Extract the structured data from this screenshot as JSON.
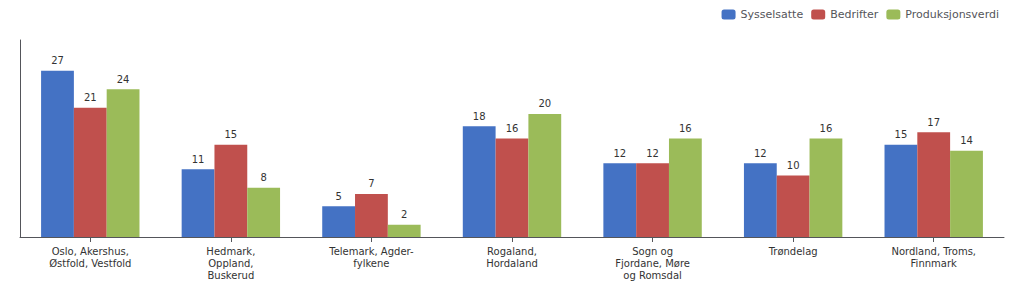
{
  "chart_data": {
    "type": "bar",
    "categories": [
      "Oslo, Akershus,\nØstfold, Vestfold",
      "Hedmark,\nOppland,\nBuskerud",
      "Telemark, Agder-\nfylkene",
      "Rogaland,\nHordaland",
      "Sogn og\nFjordane, Møre\nog Romsdal",
      "Trøndelag",
      "Nordland, Troms,\nFinnmark"
    ],
    "series": [
      {
        "name": "Sysselsatte",
        "color": "#4472C4",
        "values": [
          27,
          11,
          5,
          18,
          12,
          12,
          15
        ]
      },
      {
        "name": "Bedrifter",
        "color": "#C0504D",
        "values": [
          21,
          15,
          7,
          16,
          12,
          10,
          17
        ]
      },
      {
        "name": "Produksjonsverdi",
        "color": "#9BBB59",
        "values": [
          24,
          8,
          2,
          20,
          16,
          16,
          14
        ]
      }
    ],
    "ylim": [
      0,
      32
    ],
    "data_labels": true,
    "tick_labels": "x",
    "legend": "upper right",
    "grid": false
  }
}
